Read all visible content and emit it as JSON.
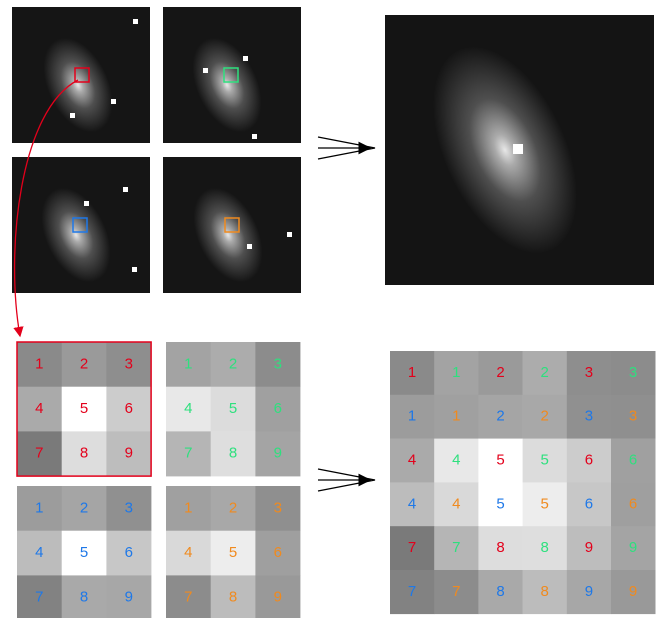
{
  "grids": [
    {
      "color": "#e3001b",
      "cells": [
        "1",
        "2",
        "3",
        "4",
        "5",
        "6",
        "7",
        "8",
        "9"
      ]
    },
    {
      "color": "#2ee07e",
      "cells": [
        "1",
        "2",
        "3",
        "4",
        "5",
        "6",
        "7",
        "8",
        "9"
      ]
    },
    {
      "color": "#1e78e8",
      "cells": [
        "1",
        "2",
        "3",
        "4",
        "5",
        "6",
        "7",
        "8",
        "9"
      ]
    },
    {
      "color": "#f08a1e",
      "cells": [
        "1",
        "2",
        "3",
        "4",
        "5",
        "6",
        "7",
        "8",
        "9"
      ]
    }
  ],
  "combined": {
    "rows": [
      [
        {
          "label": "1",
          "color": "#e3001b"
        },
        {
          "label": "1",
          "color": "#2ee07e"
        },
        {
          "label": "2",
          "color": "#e3001b"
        },
        {
          "label": "2",
          "color": "#2ee07e"
        },
        {
          "label": "3",
          "color": "#e3001b"
        },
        {
          "label": "3",
          "color": "#2ee07e"
        }
      ],
      [
        {
          "label": "1",
          "color": "#1e78e8"
        },
        {
          "label": "1",
          "color": "#f08a1e"
        },
        {
          "label": "2",
          "color": "#1e78e8"
        },
        {
          "label": "2",
          "color": "#f08a1e"
        },
        {
          "label": "3",
          "color": "#1e78e8"
        },
        {
          "label": "3",
          "color": "#f08a1e"
        }
      ],
      [
        {
          "label": "4",
          "color": "#e3001b"
        },
        {
          "label": "4",
          "color": "#2ee07e"
        },
        {
          "label": "5",
          "color": "#e3001b"
        },
        {
          "label": "5",
          "color": "#2ee07e"
        },
        {
          "label": "6",
          "color": "#e3001b"
        },
        {
          "label": "6",
          "color": "#2ee07e"
        }
      ],
      [
        {
          "label": "4",
          "color": "#1e78e8"
        },
        {
          "label": "4",
          "color": "#f08a1e"
        },
        {
          "label": "5",
          "color": "#1e78e8"
        },
        {
          "label": "5",
          "color": "#f08a1e"
        },
        {
          "label": "6",
          "color": "#1e78e8"
        },
        {
          "label": "6",
          "color": "#f08a1e"
        }
      ],
      [
        {
          "label": "7",
          "color": "#e3001b"
        },
        {
          "label": "7",
          "color": "#2ee07e"
        },
        {
          "label": "8",
          "color": "#e3001b"
        },
        {
          "label": "8",
          "color": "#2ee07e"
        },
        {
          "label": "9",
          "color": "#e3001b"
        },
        {
          "label": "9",
          "color": "#2ee07e"
        }
      ],
      [
        {
          "label": "7",
          "color": "#1e78e8"
        },
        {
          "label": "7",
          "color": "#f08a1e"
        },
        {
          "label": "8",
          "color": "#1e78e8"
        },
        {
          "label": "8",
          "color": "#f08a1e"
        },
        {
          "label": "9",
          "color": "#1e78e8"
        },
        {
          "label": "9",
          "color": "#f08a1e"
        }
      ]
    ]
  }
}
